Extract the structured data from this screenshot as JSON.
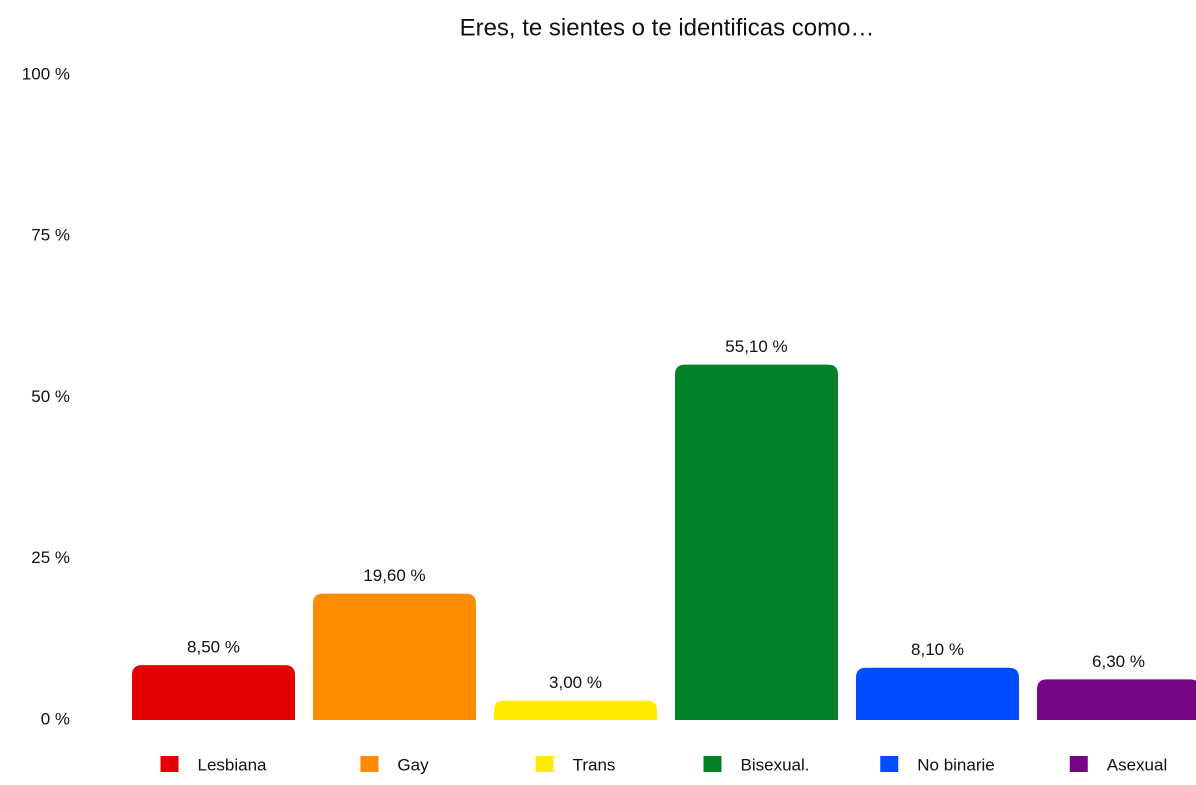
{
  "chart_data": {
    "type": "bar",
    "title": "Eres, te sientes o te identificas como…",
    "categories": [
      "Lesbiana",
      "Gay",
      "Trans",
      "Bisexual.",
      "No binarie",
      "Asexual"
    ],
    "values": [
      8.5,
      19.6,
      3.0,
      55.1,
      8.1,
      6.3
    ],
    "value_labels": [
      "8,50 %",
      "19,60 %",
      "3,00 %",
      "55,10 %",
      "8,10 %",
      "6,30 %"
    ],
    "colors": [
      "#e30000",
      "#ff8c00",
      "#ffeb00",
      "#008226",
      "#004dff",
      "#750787"
    ],
    "ylim": [
      0,
      100
    ],
    "yticks": [
      {
        "value": 0,
        "label": "0 %"
      },
      {
        "value": 25,
        "label": "25 %"
      },
      {
        "value": 50,
        "label": "50 %"
      },
      {
        "value": 75,
        "label": "75 %"
      },
      {
        "value": 100,
        "label": "100 %"
      }
    ],
    "grid": false,
    "legend": "bottom"
  }
}
